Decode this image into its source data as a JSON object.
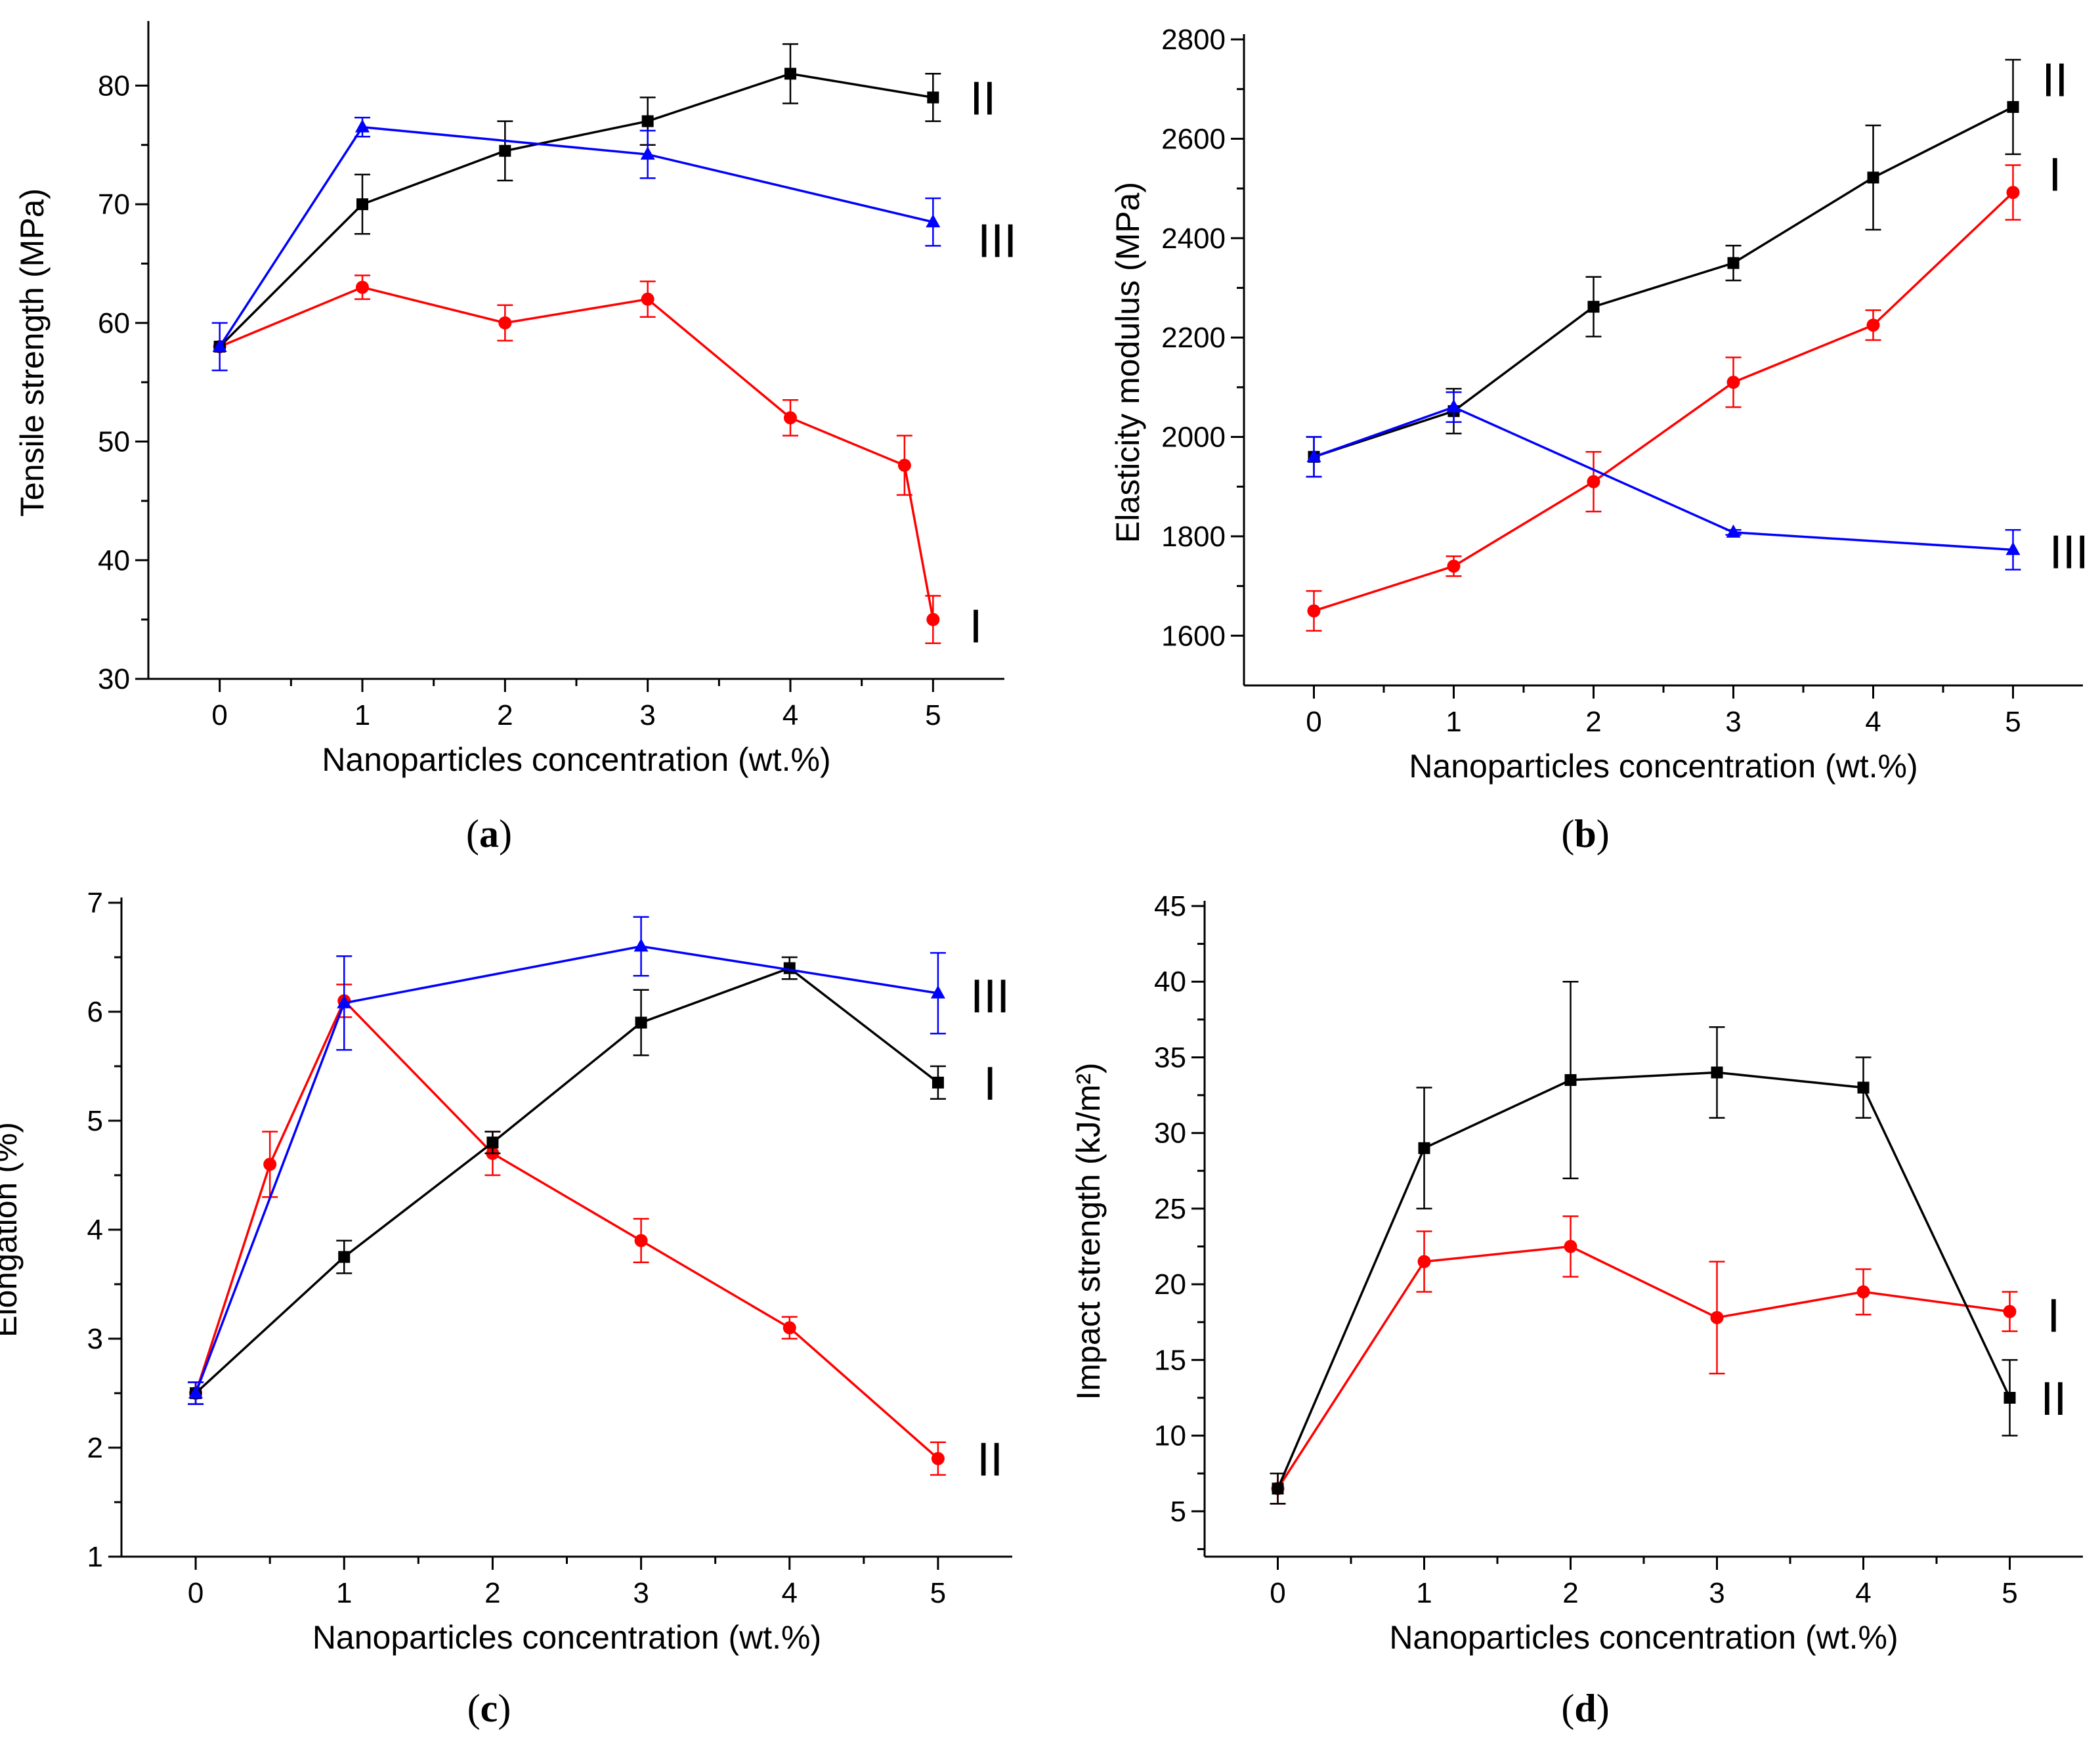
{
  "chart_data": [
    {
      "type": "line",
      "panel_label": "a",
      "title": "",
      "xlabel": "Nanoparticles concentration (wt.%)",
      "ylabel": "Tensile strength (MPa)",
      "xlim": [
        -0.5,
        5.5
      ],
      "ylim": [
        30,
        85
      ],
      "xticks": [
        0,
        1,
        2,
        3,
        4,
        5
      ],
      "xtick_labels": [
        "0",
        "1",
        "2",
        "3",
        "4",
        "5"
      ],
      "yticks": [
        30,
        40,
        50,
        60,
        70,
        80
      ],
      "ytick_labels": [
        "30",
        "40",
        "50",
        "60",
        "70",
        "80"
      ],
      "series": [
        {
          "name": "I",
          "color": "#ff0000",
          "marker": "circle",
          "x": [
            0,
            1,
            2,
            3,
            4,
            4.8,
            5
          ],
          "y": [
            58,
            63,
            60,
            62,
            52,
            48,
            35
          ],
          "err": [
            0,
            1,
            1.5,
            1.5,
            1.5,
            2.5,
            2
          ]
        },
        {
          "name": "II",
          "color": "#000000",
          "marker": "square",
          "x": [
            0,
            1,
            2,
            3,
            4,
            5
          ],
          "y": [
            58,
            70,
            74.5,
            77,
            81,
            79
          ],
          "err": [
            0,
            2.5,
            2.5,
            2,
            2.5,
            2
          ]
        },
        {
          "name": "III",
          "color": "#0000ff",
          "marker": "triangle",
          "x": [
            0,
            1,
            3,
            5
          ],
          "y": [
            58,
            76.5,
            74.2,
            68.5
          ],
          "err": [
            2,
            0.8,
            2,
            2
          ]
        }
      ],
      "annotations": [
        {
          "text": "I",
          "x": 5.3,
          "y": 34.5
        },
        {
          "text": "II",
          "x": 5.35,
          "y": 79
        },
        {
          "text": "III",
          "x": 5.45,
          "y": 67
        }
      ]
    },
    {
      "type": "line",
      "panel_label": "b",
      "title": "",
      "xlabel": "Nanoparticles concentration (wt.%)",
      "ylabel": "Elasticity modulus (MPa)",
      "xlim": [
        -0.5,
        5.5
      ],
      "ylim": [
        1500,
        2800
      ],
      "xticks": [
        0,
        1,
        2,
        3,
        4,
        5
      ],
      "xtick_labels": [
        "0",
        "1",
        "2",
        "3",
        "4",
        "5"
      ],
      "yticks": [
        1600,
        1800,
        2000,
        2200,
        2400,
        2600,
        2800
      ],
      "ytick_labels": [
        "1600",
        "1800",
        "2000",
        "2200",
        "2400",
        "2600",
        "2800"
      ],
      "series": [
        {
          "name": "I",
          "color": "#ff0000",
          "marker": "circle",
          "x": [
            0,
            1,
            2,
            3,
            4,
            5
          ],
          "y": [
            1650,
            1740,
            1910,
            2110,
            2225,
            2492
          ],
          "err": [
            40,
            20,
            60,
            50,
            30,
            55
          ]
        },
        {
          "name": "II",
          "color": "#000000",
          "marker": "square",
          "x": [
            0,
            1,
            2,
            3,
            4,
            5
          ],
          "y": [
            1960,
            2052,
            2262,
            2350,
            2522,
            2664
          ],
          "err": [
            40,
            45,
            60,
            35,
            105,
            95
          ]
        },
        {
          "name": "III",
          "color": "#0000ff",
          "marker": "triangle",
          "x": [
            0,
            1,
            3,
            5
          ],
          "y": [
            1960,
            2060,
            1808,
            1773
          ],
          "err": [
            40,
            30,
            5,
            40
          ]
        }
      ],
      "annotations": [
        {
          "text": "II",
          "x": 5.3,
          "y": 2720
        },
        {
          "text": "I",
          "x": 5.3,
          "y": 2530
        },
        {
          "text": "III",
          "x": 5.4,
          "y": 1770
        }
      ]
    },
    {
      "type": "line",
      "panel_label": "c",
      "title": "",
      "xlabel": "Nanoparticles concentration (wt.%)",
      "ylabel": "Elongation (%)",
      "xlim": [
        -0.5,
        5.5
      ],
      "ylim": [
        1,
        7
      ],
      "xticks": [
        0,
        1,
        2,
        3,
        4,
        5
      ],
      "xtick_labels": [
        "0",
        "1",
        "2",
        "3",
        "4",
        "5"
      ],
      "yticks": [
        1,
        2,
        3,
        4,
        5,
        6,
        7
      ],
      "ytick_labels": [
        "1",
        "2",
        "3",
        "4",
        "5",
        "6",
        "7"
      ],
      "series": [
        {
          "name": "II",
          "color": "#ff0000",
          "marker": "circle",
          "x": [
            0,
            0.5,
            1,
            2,
            3,
            4,
            5
          ],
          "y": [
            2.5,
            4.6,
            6.1,
            4.7,
            3.9,
            3.1,
            1.9
          ],
          "err": [
            0.1,
            0.3,
            0.15,
            0.2,
            0.2,
            0.1,
            0.15
          ]
        },
        {
          "name": "I",
          "color": "#000000",
          "marker": "square",
          "x": [
            0,
            1,
            2,
            3,
            4,
            5
          ],
          "y": [
            2.5,
            3.75,
            4.8,
            5.9,
            6.4,
            5.35
          ],
          "err": [
            0.1,
            0.15,
            0.1,
            0.3,
            0.1,
            0.15
          ]
        },
        {
          "name": "III",
          "color": "#0000ff",
          "marker": "triangle",
          "x": [
            0,
            1,
            3,
            5
          ],
          "y": [
            2.5,
            6.08,
            6.6,
            6.17
          ],
          "err": [
            0.1,
            0.43,
            0.27,
            0.37
          ]
        }
      ],
      "annotations": [
        {
          "text": "III",
          "x": 5.35,
          "y": 6.15
        },
        {
          "text": "I",
          "x": 5.35,
          "y": 5.35
        },
        {
          "text": "II",
          "x": 5.35,
          "y": 1.9
        }
      ]
    },
    {
      "type": "line",
      "panel_label": "d",
      "title": "",
      "xlabel": "Nanoparticles concentration (wt.%)",
      "ylabel": "Impact strength (kJ/m²)",
      "xlim": [
        -0.5,
        5.5
      ],
      "ylim": [
        2,
        45
      ],
      "xticks": [
        0,
        1,
        2,
        3,
        4,
        5
      ],
      "xtick_labels": [
        "0",
        "1",
        "2",
        "3",
        "4",
        "5"
      ],
      "yticks": [
        5,
        10,
        15,
        20,
        25,
        30,
        35,
        40,
        45
      ],
      "ytick_labels": [
        "5",
        "10",
        "15",
        "20",
        "25",
        "30",
        "35",
        "40",
        "45"
      ],
      "series": [
        {
          "name": "I",
          "color": "#ff0000",
          "marker": "circle",
          "x": [
            0,
            1,
            2,
            3,
            4,
            5
          ],
          "y": [
            6.5,
            21.5,
            22.5,
            17.8,
            19.5,
            18.2
          ],
          "err": [
            1,
            2,
            2,
            3.7,
            1.5,
            1.3
          ]
        },
        {
          "name": "II",
          "color": "#000000",
          "marker": "square",
          "x": [
            0,
            1,
            2,
            3,
            4,
            5
          ],
          "y": [
            6.5,
            29,
            33.5,
            34,
            33,
            12.5
          ],
          "err": [
            1,
            4,
            6.5,
            3,
            2,
            2.5
          ]
        }
      ],
      "annotations": [
        {
          "text": "I",
          "x": 5.3,
          "y": 18
        },
        {
          "text": "II",
          "x": 5.3,
          "y": 12.5
        }
      ]
    }
  ]
}
